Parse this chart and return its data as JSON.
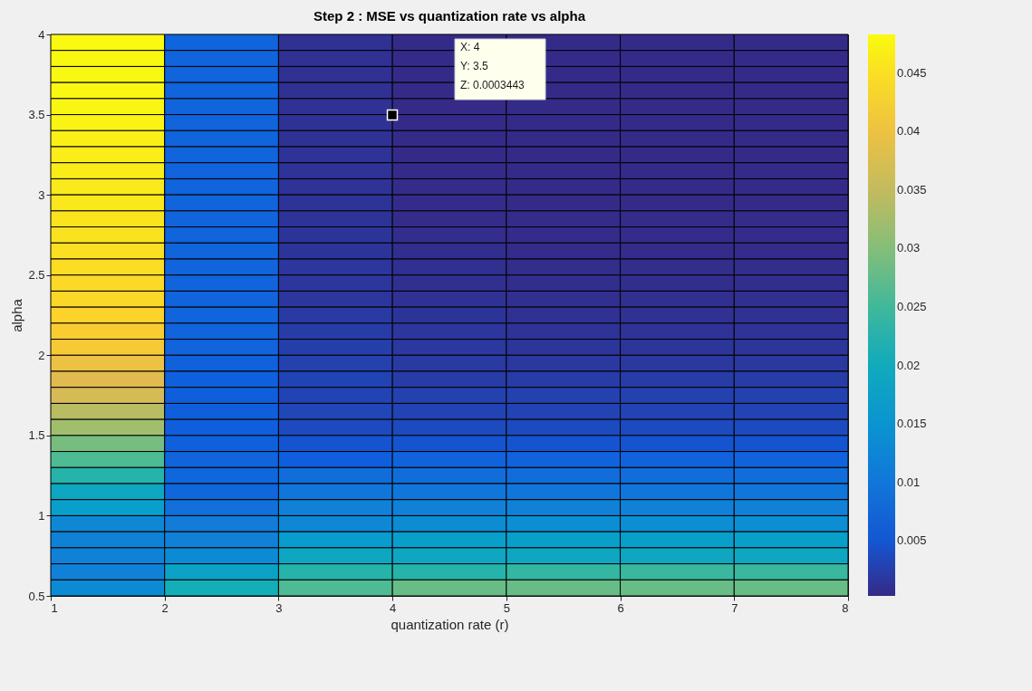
{
  "chart_data": {
    "type": "heatmap",
    "title": "Step 2 : MSE vs quantization rate vs alpha",
    "xlabel": "quantization rate (r)",
    "ylabel": "alpha",
    "cells": [
      [
        0.0482,
        0.007,
        0.001,
        0.0004,
        0.0004,
        0.0004,
        0.0004
      ],
      [
        0.0481,
        0.007,
        0.001,
        0.0004,
        0.0004,
        0.0004,
        0.0004
      ],
      [
        0.048,
        0.007,
        0.001,
        0.0004,
        0.0004,
        0.0004,
        0.0004
      ],
      [
        0.0479,
        0.007,
        0.001,
        0.0004,
        0.0004,
        0.0004,
        0.0004
      ],
      [
        0.0477,
        0.007,
        0.0011,
        0.0003443,
        0.0004,
        0.0004,
        0.0004
      ],
      [
        0.0474,
        0.007,
        0.0011,
        0.0004,
        0.0004,
        0.0004,
        0.0004
      ],
      [
        0.047,
        0.007,
        0.0011,
        0.0004,
        0.0004,
        0.0004,
        0.0004
      ],
      [
        0.0467,
        0.007,
        0.0012,
        0.0004,
        0.0004,
        0.0004,
        0.0004
      ],
      [
        0.0465,
        0.007,
        0.0012,
        0.0004,
        0.0004,
        0.0004,
        0.0004
      ],
      [
        0.0462,
        0.007,
        0.0012,
        0.0005,
        0.0004,
        0.0004,
        0.0004
      ],
      [
        0.0459,
        0.007,
        0.0013,
        0.0005,
        0.0004,
        0.0004,
        0.0004
      ],
      [
        0.0456,
        0.007,
        0.0013,
        0.0005,
        0.0005,
        0.0005,
        0.0005
      ],
      [
        0.0453,
        0.007,
        0.0014,
        0.0006,
        0.0005,
        0.0005,
        0.0005
      ],
      [
        0.045,
        0.007,
        0.0014,
        0.0007,
        0.0005,
        0.0005,
        0.0005
      ],
      [
        0.0447,
        0.007,
        0.0016,
        0.0008,
        0.0006,
        0.0006,
        0.0006
      ],
      [
        0.0443,
        0.007,
        0.0016,
        0.0009,
        0.0007,
        0.0007,
        0.0007
      ],
      [
        0.044,
        0.007,
        0.0016,
        0.0011,
        0.0008,
        0.0008,
        0.0008
      ],
      [
        0.0435,
        0.007,
        0.002,
        0.0014,
        0.001,
        0.001,
        0.001
      ],
      [
        0.0425,
        0.007,
        0.0022,
        0.0016,
        0.0012,
        0.0012,
        0.0012
      ],
      [
        0.042,
        0.007,
        0.0025,
        0.0018,
        0.0015,
        0.0015,
        0.0015
      ],
      [
        0.04,
        0.0065,
        0.0027,
        0.002,
        0.0018,
        0.0018,
        0.0018
      ],
      [
        0.038,
        0.0063,
        0.0031,
        0.0022,
        0.0022,
        0.0022,
        0.0022
      ],
      [
        0.0367,
        0.0062,
        0.003,
        0.0028,
        0.0028,
        0.0028,
        0.0028
      ],
      [
        0.034,
        0.0062,
        0.0033,
        0.003,
        0.003,
        0.003,
        0.003
      ],
      [
        0.032,
        0.0062,
        0.0038,
        0.0038,
        0.0038,
        0.0038,
        0.0038
      ],
      [
        0.029,
        0.0063,
        0.0048,
        0.0048,
        0.0048,
        0.0048,
        0.0048
      ],
      [
        0.026,
        0.007,
        0.006,
        0.0068,
        0.0068,
        0.0068,
        0.0068
      ],
      [
        0.023,
        0.0075,
        0.0085,
        0.0085,
        0.0085,
        0.0085,
        0.0085
      ],
      [
        0.019,
        0.0075,
        0.01,
        0.01,
        0.01,
        0.01,
        0.01
      ],
      [
        0.017,
        0.009,
        0.0118,
        0.0118,
        0.0118,
        0.0118,
        0.0118
      ],
      [
        0.013,
        0.011,
        0.013,
        0.0137,
        0.014,
        0.014,
        0.014
      ],
      [
        0.012,
        0.0118,
        0.0165,
        0.017,
        0.017,
        0.017,
        0.017
      ],
      [
        0.0118,
        0.0133,
        0.019,
        0.019,
        0.019,
        0.019,
        0.019
      ],
      [
        0.0118,
        0.018,
        0.023,
        0.023,
        0.024,
        0.0245,
        0.0245
      ],
      [
        0.0133,
        0.021,
        0.026,
        0.028,
        0.028,
        0.028,
        0.028
      ]
    ],
    "xlim": [
      1,
      8
    ],
    "xticks": [
      1,
      2,
      3,
      4,
      5,
      6,
      7,
      8
    ],
    "ylim": [
      0.5,
      4
    ],
    "yticks": [
      0.5,
      1,
      1.5,
      2,
      2.5,
      3,
      3.5,
      4
    ],
    "clim": [
      0.0003,
      0.0483
    ],
    "cticks": [
      0.005,
      0.01,
      0.015,
      0.02,
      0.025,
      0.03,
      0.035,
      0.04,
      0.045
    ],
    "annotations": [
      "X: 4\nY: 3.5\nZ: 0.0003443"
    ]
  }
}
